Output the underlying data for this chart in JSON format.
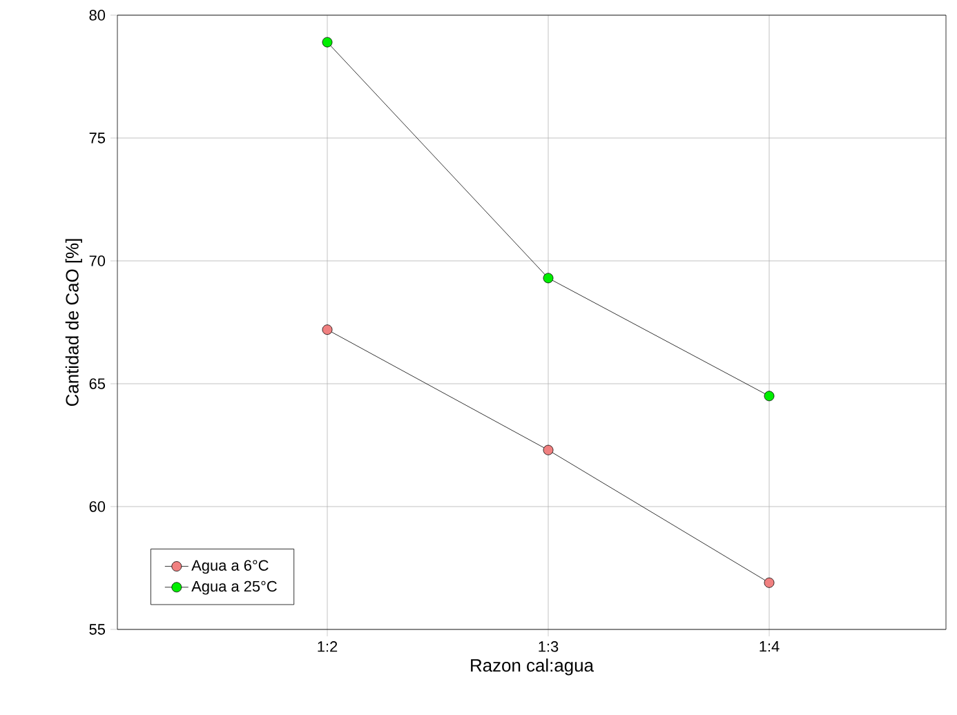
{
  "chart_data": {
    "type": "line",
    "xlabel": "Razon cal:agua",
    "ylabel": "Cantidad de CaO [%]",
    "categories": [
      "1:2",
      "1:3",
      "1:4"
    ],
    "series": [
      {
        "name": "Agua a 6°C",
        "color": "#f08080",
        "values": [
          67.2,
          62.3,
          56.9
        ]
      },
      {
        "name": "Agua a 25°C",
        "color": "#00ee00",
        "values": [
          78.9,
          69.3,
          64.5
        ]
      }
    ],
    "ylim": [
      55,
      80
    ],
    "yticks": [
      55,
      60,
      65,
      70,
      75,
      80
    ],
    "grid": true,
    "legend": "bottom left",
    "marker": "circle",
    "line_style": "solid"
  }
}
